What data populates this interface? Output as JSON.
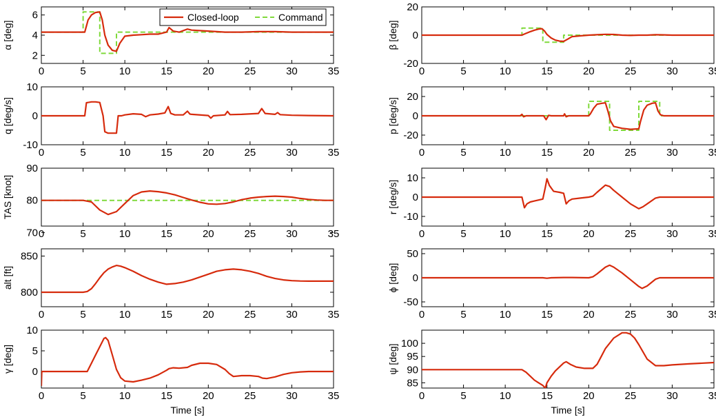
{
  "chart_data": [
    {
      "type": "line",
      "ylabel": "α [deg]",
      "xlabel": "",
      "xlim": [
        0,
        35
      ],
      "ylim": [
        1.2,
        6.8
      ],
      "xticks": [
        "0",
        "5",
        "10",
        "15",
        "20",
        "25",
        "30",
        "35"
      ],
      "yticks": [
        "2",
        "4",
        "6"
      ],
      "legend": {
        "placement": "top-right",
        "entries": [
          "Closed-loop",
          "Command"
        ]
      },
      "series": [
        {
          "name": "Closed-loop",
          "color": "#d62a0c",
          "x": [
            0,
            5.2,
            5.6,
            6,
            6.5,
            7,
            7.3,
            7.6,
            8,
            8.5,
            9,
            9.4,
            10,
            11,
            12,
            13,
            14,
            15,
            15.3,
            15.8,
            16.5,
            17.5,
            18,
            20,
            22,
            24,
            26,
            28,
            30,
            32,
            35
          ],
          "y": [
            4.3,
            4.3,
            5.5,
            6.0,
            6.25,
            6.3,
            5.5,
            4.0,
            3.0,
            2.5,
            2.4,
            3.2,
            3.9,
            4.0,
            4.05,
            4.1,
            4.1,
            4.3,
            4.75,
            4.4,
            4.3,
            4.6,
            4.5,
            4.4,
            4.3,
            4.3,
            4.35,
            4.35,
            4.3,
            4.3,
            4.3
          ]
        },
        {
          "name": "Command",
          "color": "#7fd93a",
          "dashed": true,
          "x": [
            0,
            5,
            5,
            7,
            7,
            9,
            9,
            35
          ],
          "y": [
            4.3,
            4.3,
            6.3,
            6.3,
            2.2,
            2.2,
            4.3,
            4.3
          ]
        }
      ]
    },
    {
      "type": "line",
      "ylabel": "q [deg/s]",
      "xlabel": "",
      "xlim": [
        0,
        35
      ],
      "ylim": [
        -10,
        10
      ],
      "xticks": [
        "0",
        "5",
        "10",
        "15",
        "20",
        "25",
        "30",
        "35"
      ],
      "yticks": [
        "-10",
        "0",
        "10"
      ],
      "series": [
        {
          "name": "Closed-loop",
          "color": "#d62a0c",
          "x": [
            0,
            5.2,
            5.4,
            6,
            6.5,
            7,
            7.4,
            7.6,
            8,
            8.5,
            9,
            9.2,
            9.6,
            10,
            11,
            12,
            12.5,
            13,
            14,
            14.8,
            15.2,
            15.5,
            16,
            17,
            17.5,
            17.8,
            18,
            20,
            20.3,
            20.6,
            22,
            22.3,
            22.6,
            24,
            26,
            26.4,
            26.8,
            28,
            28.3,
            28.6,
            30,
            32,
            35
          ],
          "y": [
            0,
            0,
            4.5,
            4.8,
            4.8,
            4.6,
            0,
            -5.5,
            -6,
            -6,
            -6,
            0,
            0,
            0.3,
            0.7,
            0.5,
            -0.3,
            0.3,
            0.6,
            1,
            3.2,
            0.8,
            0.3,
            0.3,
            1.6,
            0.6,
            0.5,
            0.1,
            -0.8,
            0,
            0.3,
            1.5,
            0.4,
            0.5,
            0.8,
            2.5,
            0.8,
            0.5,
            1.1,
            0.4,
            0.2,
            0.1,
            0
          ]
        }
      ]
    },
    {
      "type": "line",
      "ylabel": "TAS [knot]",
      "xlabel": "",
      "xlim": [
        0,
        35
      ],
      "ylim": [
        72,
        90
      ],
      "xticks": [
        "0",
        "5",
        "10",
        "15",
        "20",
        "25",
        "30",
        "35"
      ],
      "yticks": [
        "70",
        "80",
        "90"
      ],
      "series": [
        {
          "name": "Closed-loop",
          "color": "#d62a0c",
          "x": [
            0,
            5,
            6,
            7,
            8,
            9,
            10,
            11,
            12,
            13,
            14,
            15,
            16,
            17,
            18,
            19,
            20,
            21,
            22,
            23,
            24,
            25,
            26,
            27,
            28,
            29,
            30,
            31,
            32,
            33,
            34,
            35
          ],
          "y": [
            80,
            80,
            79.5,
            77,
            75.6,
            76.5,
            79,
            81.5,
            82.6,
            82.9,
            82.7,
            82.3,
            81.7,
            80.9,
            80.1,
            79.4,
            78.9,
            78.8,
            79,
            79.5,
            80.2,
            80.7,
            81,
            81.2,
            81.3,
            81.2,
            81,
            80.6,
            80.3,
            80.1,
            80,
            80
          ]
        },
        {
          "name": "Command",
          "color": "#7fd93a",
          "dashed": true,
          "x": [
            0,
            35
          ],
          "y": [
            80,
            80
          ]
        }
      ]
    },
    {
      "type": "line",
      "ylabel": "alt [ft]",
      "xlabel": "",
      "xlim": [
        0,
        35
      ],
      "ylim": [
        780,
        860
      ],
      "xticks": [
        "0",
        "5",
        "10",
        "15",
        "20",
        "25",
        "30",
        "35"
      ],
      "yticks": [
        "800",
        "850"
      ],
      "series": [
        {
          "name": "Closed-loop",
          "color": "#d62a0c",
          "x": [
            0,
            5,
            5.5,
            6,
            6.5,
            7,
            7.5,
            8,
            8.5,
            9,
            9.5,
            10,
            11,
            12,
            13,
            14,
            15,
            16,
            17,
            18,
            19,
            20,
            21,
            22,
            23,
            24,
            25,
            26,
            27,
            28,
            29,
            30,
            31,
            32,
            33,
            34,
            35
          ],
          "y": [
            800,
            800,
            801,
            805,
            812,
            820,
            827,
            832,
            835,
            837,
            836,
            834,
            829,
            823,
            818,
            814,
            811,
            812,
            814,
            817,
            821,
            825,
            829,
            831,
            832,
            831,
            829,
            826,
            822,
            819,
            817,
            816,
            815.5,
            815.3,
            815.3,
            815.3,
            815.3
          ]
        }
      ]
    },
    {
      "type": "line",
      "ylabel": "γ [deg]",
      "xlabel": "Time [s]",
      "xlim": [
        0,
        35
      ],
      "ylim": [
        -4,
        10
      ],
      "xticks": [
        "0",
        "5",
        "10",
        "15",
        "20",
        "25",
        "30",
        "35"
      ],
      "yticks": [
        "0",
        "5",
        "10"
      ],
      "series": [
        {
          "name": "Closed-loop",
          "color": "#d62a0c",
          "x": [
            0,
            0.05,
            5,
            5.5,
            6,
            6.5,
            7,
            7.5,
            7.7,
            8,
            8.5,
            9,
            9.5,
            10,
            11,
            12,
            13,
            14,
            15,
            15.3,
            15.8,
            16.5,
            17.5,
            18,
            19,
            20,
            21,
            22,
            22.5,
            23,
            24,
            25,
            26,
            26.5,
            27,
            28,
            29,
            30,
            31,
            32,
            33,
            34,
            35
          ],
          "y": [
            -3.5,
            0,
            0,
            0,
            2,
            4,
            6,
            8,
            8.2,
            7.5,
            4,
            0.5,
            -1.5,
            -2.3,
            -2.5,
            -2.1,
            -1.6,
            -0.8,
            0.3,
            0.7,
            0.9,
            0.8,
            1,
            1.5,
            2,
            2,
            1.7,
            0.5,
            -0.5,
            -1.2,
            -1,
            -1,
            -1.2,
            -1.6,
            -1.7,
            -1.3,
            -0.7,
            -0.3,
            -0.1,
            0,
            0,
            0,
            0
          ]
        }
      ]
    },
    {
      "type": "line",
      "ylabel": "β [deg]",
      "xlabel": "",
      "xlim": [
        0,
        35
      ],
      "ylim": [
        -20,
        20
      ],
      "xticks": [
        "0",
        "5",
        "10",
        "15",
        "20",
        "25",
        "30",
        "35"
      ],
      "yticks": [
        "-20",
        "0",
        "20"
      ],
      "series": [
        {
          "name": "Closed-loop",
          "color": "#d62a0c",
          "x": [
            0,
            12,
            12.3,
            13,
            13.5,
            14,
            14.4,
            14.7,
            15,
            15.5,
            16,
            16.5,
            17,
            17.5,
            18,
            19,
            20,
            21,
            22,
            23,
            24,
            25,
            26,
            27,
            28,
            29,
            30,
            35
          ],
          "y": [
            0,
            0,
            0.8,
            2.5,
            3.5,
            4.3,
            4.6,
            3,
            0.5,
            -2,
            -3.5,
            -4.2,
            -4.4,
            -2.8,
            -1,
            -0.5,
            0,
            0.3,
            0.6,
            0.5,
            0,
            -0.2,
            0,
            0,
            0.3,
            0.2,
            0,
            0
          ]
        },
        {
          "name": "Command",
          "color": "#7fd93a",
          "dashed": true,
          "x": [
            0,
            12,
            12,
            14.5,
            14.5,
            17,
            17,
            35
          ],
          "y": [
            0,
            0,
            5,
            5,
            -5,
            -5,
            0,
            0
          ]
        }
      ]
    },
    {
      "type": "line",
      "ylabel": "p [deg/s]",
      "xlabel": "",
      "xlim": [
        0,
        35
      ],
      "ylim": [
        -30,
        30
      ],
      "xticks": [
        "0",
        "5",
        "10",
        "15",
        "20",
        "25",
        "30",
        "35"
      ],
      "yticks": [
        "-20",
        "0",
        "20"
      ],
      "series": [
        {
          "name": "Closed-loop",
          "color": "#d62a0c",
          "x": [
            0,
            11.8,
            12,
            12.2,
            12.5,
            14.6,
            14.9,
            15.2,
            15.5,
            16,
            17,
            17.1,
            17.3,
            17.6,
            20,
            20.2,
            20.6,
            21,
            21.6,
            22,
            22.3,
            22.6,
            23,
            24,
            25,
            26,
            26.2,
            26.6,
            27,
            27.6,
            28,
            28.3,
            28.6,
            29,
            29.5,
            35
          ],
          "y": [
            0,
            0,
            1.5,
            -1,
            0,
            0,
            -4,
            0.5,
            0,
            0,
            0,
            2,
            -1,
            0,
            0,
            2,
            8,
            12,
            13,
            13.5,
            5,
            -5,
            -11,
            -13,
            -14,
            -13.5,
            -6,
            6,
            11,
            13,
            13.5,
            5,
            1,
            0,
            0,
            0
          ]
        },
        {
          "name": "Command",
          "color": "#7fd93a",
          "dashed": true,
          "x": [
            0,
            20,
            20,
            22.5,
            22.5,
            26,
            26,
            28.5,
            28.5,
            35
          ],
          "y": [
            0,
            0,
            15,
            15,
            -15,
            -15,
            15,
            15,
            0,
            0
          ]
        }
      ]
    },
    {
      "type": "line",
      "ylabel": "r [deg/s]",
      "xlabel": "",
      "xlim": [
        0,
        35
      ],
      "ylim": [
        -15,
        15
      ],
      "xticks": [
        "0",
        "5",
        "10",
        "15",
        "20",
        "25",
        "30",
        "35"
      ],
      "yticks": [
        "-10",
        "0",
        "10"
      ],
      "series": [
        {
          "name": "Closed-loop",
          "color": "#d62a0c",
          "x": [
            0,
            12,
            12.3,
            12.6,
            13,
            13.5,
            14,
            14.5,
            14.8,
            15,
            15.3,
            15.8,
            16.5,
            17,
            17.3,
            17.6,
            18,
            19,
            20,
            20.5,
            21,
            22,
            22.5,
            23,
            24,
            25,
            26,
            26.5,
            27,
            28,
            28.5,
            29,
            30,
            35
          ],
          "y": [
            0,
            0,
            -5.5,
            -3.5,
            -2.5,
            -2,
            -1.5,
            -1,
            5,
            9.5,
            6,
            3,
            2.5,
            2,
            -3.5,
            -2,
            -1,
            -0.5,
            0,
            0.5,
            2.5,
            6.2,
            5.5,
            3.5,
            0,
            -3.5,
            -6,
            -5,
            -3.5,
            -0.5,
            0,
            0,
            0,
            0
          ]
        }
      ]
    },
    {
      "type": "line",
      "ylabel": "ϕ [deg]",
      "xlabel": "",
      "xlim": [
        0,
        35
      ],
      "ylim": [
        -60,
        60
      ],
      "xticks": [
        "0",
        "5",
        "10",
        "15",
        "20",
        "25",
        "30",
        "35"
      ],
      "yticks": [
        "-50",
        "0",
        "50"
      ],
      "series": [
        {
          "name": "Closed-loop",
          "color": "#d62a0c",
          "x": [
            0,
            14.5,
            15,
            15.5,
            17,
            18,
            20,
            20.5,
            21,
            22,
            22.5,
            23,
            24,
            25,
            26,
            26.4,
            27,
            28,
            28.5,
            30,
            35
          ],
          "y": [
            0,
            0,
            -1,
            0,
            0.5,
            0.5,
            0,
            2,
            8,
            22,
            26,
            22,
            10,
            -4,
            -18,
            -22,
            -17,
            -3,
            0,
            0,
            0
          ]
        }
      ]
    },
    {
      "type": "line",
      "ylabel": "ψ [deg]",
      "xlabel": "Time [s]",
      "xlim": [
        0,
        35
      ],
      "ylim": [
        83,
        105
      ],
      "xticks": [
        "0",
        "5",
        "10",
        "15",
        "20",
        "25",
        "30",
        "35"
      ],
      "yticks": [
        "85",
        "90",
        "95",
        "100"
      ],
      "series": [
        {
          "name": "Closed-loop",
          "color": "#d62a0c",
          "x": [
            0,
            12,
            12.5,
            13,
            13.5,
            14,
            14.5,
            14.8,
            15,
            15.5,
            16,
            17,
            17.3,
            17.8,
            18.5,
            19.5,
            20.5,
            21,
            21.5,
            22,
            23,
            24,
            24.5,
            25,
            25.5,
            26,
            27,
            28,
            29,
            30,
            32,
            35
          ],
          "y": [
            90,
            90,
            89,
            87.5,
            86,
            85,
            84,
            83,
            85,
            87.5,
            89.5,
            92.5,
            93,
            92,
            91,
            90.5,
            90.5,
            92,
            95,
            98,
            102,
            104,
            104,
            103.5,
            102,
            99.5,
            94,
            91.5,
            91.5,
            91.8,
            92.2,
            92.7
          ]
        }
      ]
    }
  ]
}
